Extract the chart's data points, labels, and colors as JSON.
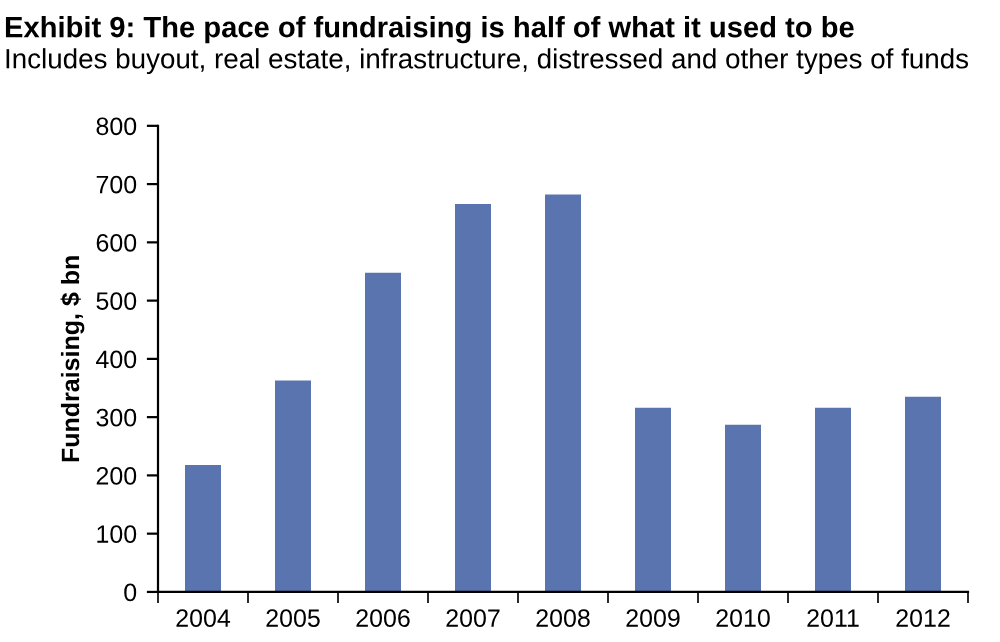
{
  "chart_data": {
    "type": "bar",
    "title": "Exhibit 9: The pace of fundraising is half of what it used to be",
    "subtitle": "Includes buyout, real estate, infrastructure, distressed and other types of funds",
    "ylabel": "Fundraising, $ bn",
    "categories": [
      "2004",
      "2005",
      "2006",
      "2007",
      "2008",
      "2009",
      "2010",
      "2011",
      "2012"
    ],
    "values": [
      218,
      363,
      548,
      666,
      682,
      316,
      287,
      316,
      335
    ],
    "color": "#5a74b0",
    "ylim": [
      0,
      800
    ],
    "yticks": [
      0,
      100,
      200,
      300,
      400,
      500,
      600,
      700,
      800
    ],
    "grid": false,
    "legend": false
  }
}
